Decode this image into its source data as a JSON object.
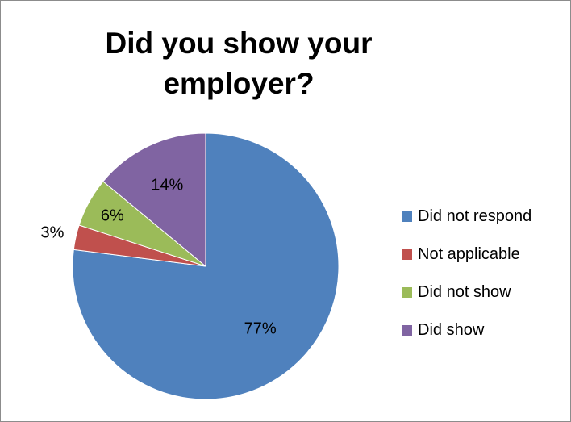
{
  "chart_data": {
    "type": "pie",
    "title_lines": [
      "Did you show your",
      "employer?"
    ],
    "slices": [
      {
        "label": "Did not respond",
        "value": 77,
        "display": "77%",
        "color": "#4F81BD"
      },
      {
        "label": "Not applicable",
        "value": 3,
        "display": "3%",
        "color": "#C0504D"
      },
      {
        "label": "Did not show",
        "value": 6,
        "display": "6%",
        "color": "#9BBB59"
      },
      {
        "label": "Did show",
        "value": 14,
        "display": "14%",
        "color": "#8064A2"
      }
    ],
    "legend_position": "right",
    "start": "12 o'clock",
    "direction": "clockwise"
  }
}
